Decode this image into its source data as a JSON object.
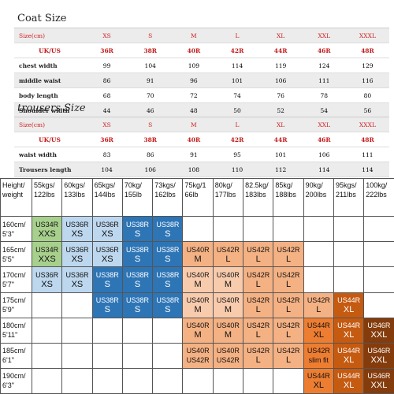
{
  "coat": {
    "title": "Coat Size",
    "rows": [
      {
        "label": "Size(cm)",
        "values": [
          "XS",
          "S",
          "M",
          "L",
          "XL",
          "XXL",
          "XXXL"
        ]
      },
      {
        "label": "UK/US",
        "values": [
          "36R",
          "38R",
          "40R",
          "42R",
          "44R",
          "46R",
          "48R"
        ]
      },
      {
        "label": "chest width",
        "values": [
          "99",
          "104",
          "109",
          "114",
          "119",
          "124",
          "129"
        ]
      },
      {
        "label": "middle waist",
        "values": [
          "86",
          "91",
          "96",
          "101",
          "106",
          "111",
          "116"
        ]
      },
      {
        "label": "body length",
        "values": [
          "68",
          "70",
          "72",
          "74",
          "76",
          "78",
          "80"
        ]
      },
      {
        "label": "Shoulder width",
        "values": [
          "44",
          "46",
          "48",
          "50",
          "52",
          "54",
          "56"
        ]
      }
    ]
  },
  "trousers": {
    "title": "trousers Size",
    "rows": [
      {
        "label": "Size(cm)",
        "values": [
          "XS",
          "S",
          "M",
          "L",
          "XL",
          "XXL",
          "XXXL"
        ]
      },
      {
        "label": "UK/US",
        "values": [
          "36R",
          "38R",
          "40R",
          "42R",
          "44R",
          "46R",
          "48R"
        ]
      },
      {
        "label": "waist width",
        "values": [
          "83",
          "86",
          "91",
          "95",
          "101",
          "106",
          "111"
        ]
      },
      {
        "label": "Trousers length",
        "values": [
          "104",
          "106",
          "108",
          "110",
          "112",
          "114",
          "114"
        ]
      }
    ]
  },
  "grid": {
    "corner": [
      "Height/",
      "weight"
    ],
    "columns": [
      [
        "55kgs/",
        "122lbs"
      ],
      [
        "60kgs/",
        "133lbs"
      ],
      [
        "65kgs/",
        "144lbs"
      ],
      [
        "70kg/",
        "155lb"
      ],
      [
        "73kgs/",
        "162lbs"
      ],
      [
        "75kg/1",
        "66lb"
      ],
      [
        "80kg/",
        "177lbs"
      ],
      [
        "82.5kg/",
        "183lbs"
      ],
      [
        "85kg/",
        "188lbs"
      ],
      [
        "90kg/",
        "200lbs"
      ],
      [
        "95kgs/",
        "211lbs"
      ],
      [
        "100kg/",
        "222lbs"
      ]
    ],
    "rows": [
      {
        "h": [
          "160cm/",
          "5'3\""
        ],
        "cells": [
          [
            "US34R",
            "XXS"
          ],
          [
            "US36R",
            "XS"
          ],
          [
            "US36R",
            "XS"
          ],
          [
            "US38R",
            "S"
          ],
          [
            "US38R",
            "S"
          ],
          null,
          null,
          null,
          null,
          null,
          null,
          null
        ]
      },
      {
        "h": [
          "165cm/",
          "5'5\""
        ],
        "cells": [
          [
            "US34R",
            "XXS"
          ],
          [
            "US36R",
            "XS"
          ],
          [
            "US36R",
            "XS"
          ],
          [
            "US38R",
            "S"
          ],
          [
            "US38R",
            "S"
          ],
          [
            "US40R",
            "M"
          ],
          [
            "US42R",
            "L"
          ],
          [
            "US42R",
            "L"
          ],
          [
            "US42R",
            "L"
          ],
          null,
          null,
          null
        ]
      },
      {
        "h": [
          "170cm/",
          "5'7\""
        ],
        "cells": [
          [
            "US36R",
            "XS"
          ],
          [
            "US36R",
            "XS"
          ],
          [
            "US38R",
            "S"
          ],
          [
            "US38R",
            "S"
          ],
          [
            "US38R",
            "S"
          ],
          [
            "US40R",
            "M"
          ],
          [
            "US40R",
            "M"
          ],
          [
            "US42R",
            "L"
          ],
          [
            "US42R",
            "L"
          ],
          null,
          null,
          null
        ]
      },
      {
        "h": [
          "175cm/",
          "5'9\""
        ],
        "cells": [
          null,
          null,
          [
            "US38R",
            "S"
          ],
          [
            "US38R",
            "S"
          ],
          [
            "US38R",
            "S"
          ],
          [
            "US40R",
            "M"
          ],
          [
            "US40R",
            "M"
          ],
          [
            "US42R",
            "L"
          ],
          [
            "US42R",
            "L"
          ],
          [
            "US42R",
            "L"
          ],
          [
            "US44R",
            "XL"
          ],
          null
        ]
      },
      {
        "h": [
          "180cm/",
          "5'11\""
        ],
        "cells": [
          null,
          null,
          null,
          null,
          null,
          [
            "US40R",
            "M"
          ],
          [
            "US40R",
            "M"
          ],
          [
            "US42R",
            "L"
          ],
          [
            "US42R",
            "L"
          ],
          [
            "US44R",
            "XL"
          ],
          [
            "US44R",
            "XL"
          ],
          [
            "US46R",
            "XXL"
          ]
        ]
      },
      {
        "h": [
          "185cm/",
          "6'1\""
        ],
        "cells": [
          null,
          null,
          null,
          null,
          null,
          [
            "US40R",
            "US42R"
          ],
          [
            "US40R",
            "US42R"
          ],
          [
            "US42R",
            "L"
          ],
          [
            "US42R",
            "L"
          ],
          [
            "US42R",
            "slim fit"
          ],
          [
            "US44R",
            "XL"
          ],
          [
            "US46R",
            "XXL"
          ]
        ]
      },
      {
        "h": [
          "190cm/",
          "6'3\""
        ],
        "cells": [
          null,
          null,
          null,
          null,
          null,
          null,
          null,
          null,
          null,
          [
            "US44R",
            "XL"
          ],
          [
            "US44R",
            "XL"
          ],
          [
            "US46R",
            "XXL"
          ]
        ]
      }
    ],
    "colors": {
      "lightGreen": "#a8d08d",
      "paleBlue": "#bdd7ee",
      "blue": "#2e75b6",
      "lightPeach": "#f8cbad",
      "peach": "#f4b183",
      "orange": "#ed7d31",
      "darkOrange": "#c55a11",
      "brown": "#843c0c"
    }
  }
}
